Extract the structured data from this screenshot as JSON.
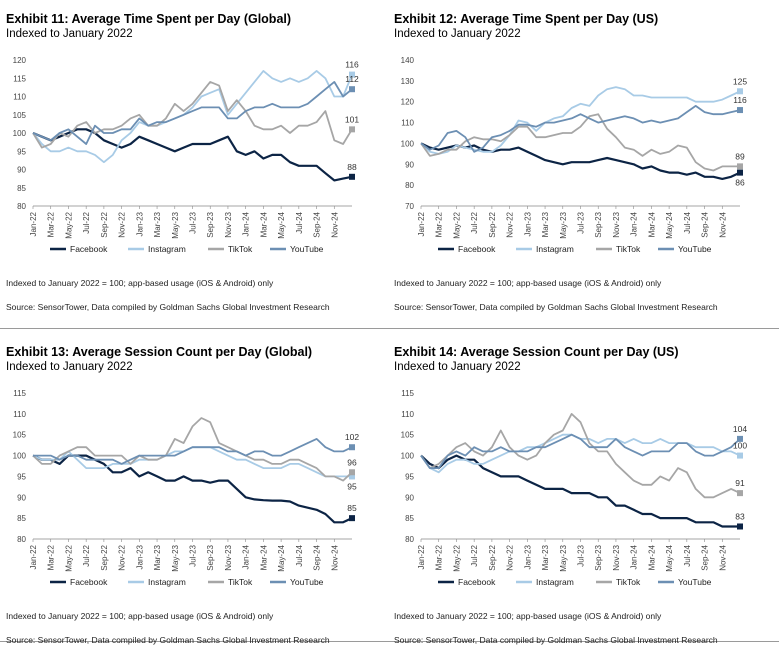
{
  "colors": {
    "facebook": "#0c2445",
    "instagram": "#a8cbe6",
    "tiktok": "#a6a6a6",
    "youtube": "#6c8fb3"
  },
  "chart_data": [
    {
      "type": "line",
      "title": "Exhibit 11: Average Time Spent per Day (Global)",
      "subtitle": "Indexed to January 2022",
      "note": "Indexed to January 2022 = 100; app-based usage (iOS & Android) only",
      "source": "Source: SensorTower, Data compiled by Goldman Sachs Global Investment Research",
      "ylim": [
        80,
        120
      ],
      "yticks": [
        80,
        85,
        90,
        95,
        100,
        105,
        110,
        115,
        120
      ],
      "xticks": [
        "Jan-22",
        "Mar-22",
        "May-22",
        "Jul-22",
        "Sep-22",
        "Nov-22",
        "Jan-23",
        "Mar-23",
        "May-23",
        "Jul-23",
        "Sep-23",
        "Nov-23",
        "Jan-24",
        "Mar-24",
        "May-24",
        "Jul-24",
        "Sep-24",
        "Nov-24"
      ],
      "legend": "bottom",
      "series": [
        {
          "name": "Facebook",
          "key": "facebook",
          "end_label": "88",
          "values": [
            100,
            99,
            98,
            99,
            100,
            101,
            101,
            100,
            98,
            97,
            96,
            97,
            99,
            98,
            97,
            96,
            95,
            96,
            97,
            97,
            97,
            98,
            99,
            95,
            94,
            95,
            93,
            94,
            94,
            92,
            91,
            91,
            91,
            89,
            87,
            87.5,
            88
          ]
        },
        {
          "name": "Instagram",
          "key": "instagram",
          "end_label": "116",
          "values": [
            100,
            97,
            95,
            95,
            96,
            95,
            95,
            94,
            92,
            94,
            98,
            100,
            103,
            102,
            102,
            103,
            104,
            105,
            107,
            110,
            111,
            112,
            105,
            108,
            111,
            114,
            117,
            115,
            114,
            115,
            114,
            115,
            117,
            115,
            110,
            110,
            116
          ]
        },
        {
          "name": "TikTok",
          "key": "tiktok",
          "end_label": "101",
          "values": [
            100,
            96,
            97,
            100,
            99,
            102,
            103,
            100,
            101,
            101,
            102,
            104,
            105,
            102,
            102,
            104,
            108,
            106,
            108,
            111,
            114,
            113,
            106,
            109,
            106,
            102,
            101,
            101,
            102,
            100,
            102,
            102,
            103,
            106,
            98,
            97,
            101
          ]
        },
        {
          "name": "YouTube",
          "key": "youtube",
          "end_label": "112",
          "values": [
            100,
            99,
            98,
            100,
            101,
            99,
            97,
            102,
            100,
            100,
            101,
            101,
            104,
            102,
            103,
            103,
            104,
            105,
            106,
            107,
            107,
            107,
            104,
            104,
            106,
            107,
            107,
            108,
            107,
            107,
            107,
            108,
            110,
            112,
            114,
            110,
            112
          ]
        }
      ]
    },
    {
      "type": "line",
      "title": "Exhibit 12: Average Time Spent per Day (US)",
      "subtitle": "Indexed to January 2022",
      "note": "Indexed to January 2022 = 100; app-based usage (iOS & Android) only",
      "source": "Source: SensorTower, Data compiled by Goldman Sachs Global Investment Research",
      "ylim": [
        70,
        140
      ],
      "yticks": [
        70,
        80,
        90,
        100,
        110,
        120,
        130,
        140
      ],
      "xticks": [
        "Jan-22",
        "Mar-22",
        "May-22",
        "Jul-22",
        "Sep-22",
        "Nov-22",
        "Jan-23",
        "Mar-23",
        "May-23",
        "Jul-23",
        "Sep-23",
        "Nov-23",
        "Jan-24",
        "Mar-24",
        "May-24",
        "Jul-24",
        "Sep-24",
        "Nov-24"
      ],
      "legend": "bottom",
      "series": [
        {
          "name": "Facebook",
          "key": "facebook",
          "end_label": "86",
          "values": [
            100,
            98,
            97,
            98,
            99,
            98,
            99,
            97,
            96,
            97,
            97,
            98,
            96,
            94,
            92,
            91,
            90,
            91,
            91,
            91,
            92,
            93,
            92,
            91,
            90,
            88,
            89,
            87,
            86,
            86,
            85,
            86,
            84,
            84,
            83,
            84,
            86
          ]
        },
        {
          "name": "Instagram",
          "key": "instagram",
          "end_label": "125",
          "values": [
            100,
            96,
            95,
            96,
            99,
            98,
            97,
            96,
            96,
            99,
            104,
            111,
            110,
            106,
            110,
            112,
            113,
            117,
            119,
            118,
            123,
            126,
            127,
            126,
            123,
            123,
            122,
            122,
            122,
            122,
            122,
            120,
            120,
            120,
            121,
            123,
            125
          ]
        },
        {
          "name": "TikTok",
          "key": "tiktok",
          "end_label": "89",
          "values": [
            100,
            94,
            95,
            97,
            97,
            101,
            103,
            102,
            102,
            101,
            104,
            108,
            108,
            103,
            103,
            104,
            105,
            105,
            108,
            113,
            114,
            107,
            103,
            98,
            97,
            94,
            97,
            95,
            96,
            99,
            98,
            91,
            88,
            87,
            89,
            89,
            89
          ]
        },
        {
          "name": "YouTube",
          "key": "youtube",
          "end_label": "116",
          "values": [
            100,
            97,
            99,
            105,
            106,
            103,
            96,
            98,
            103,
            104,
            106,
            109,
            109,
            108,
            110,
            110,
            111,
            112,
            114,
            112,
            110,
            111,
            112,
            113,
            112,
            110,
            111,
            110,
            111,
            112,
            115,
            118,
            115,
            114,
            114,
            115,
            116
          ]
        }
      ]
    },
    {
      "type": "line",
      "title": "Exhibit 13: Average Session Count per Day (Global)",
      "subtitle": "Indexed to January 2022",
      "note": "Indexed to January 2022 = 100; app-based usage (iOS & Android) only",
      "source": "Source: SensorTower, Data compiled by Goldman Sachs Global Investment Research",
      "ylim": [
        80,
        115
      ],
      "yticks": [
        80,
        85,
        90,
        95,
        100,
        105,
        110,
        115
      ],
      "xticks": [
        "Jan-22",
        "Mar-22",
        "May-22",
        "Jul-22",
        "Sep-22",
        "Nov-22",
        "Jan-23",
        "Mar-23",
        "May-23",
        "Jul-23",
        "Sep-23",
        "Nov-23",
        "Jan-24",
        "Mar-24",
        "May-24",
        "Jul-24",
        "Sep-24",
        "Nov-24"
      ],
      "legend": "bottom",
      "series": [
        {
          "name": "Facebook",
          "key": "facebook",
          "end_label": "85",
          "values": [
            100,
            99,
            99,
            98,
            100,
            100,
            100,
            99,
            98,
            96,
            96,
            97,
            95,
            96,
            95,
            94,
            94,
            95,
            94,
            94,
            93.5,
            94,
            94,
            92,
            90,
            89.5,
            89.3,
            89.2,
            89.2,
            89,
            88,
            87.5,
            87,
            86,
            84,
            84,
            85
          ]
        },
        {
          "name": "Instagram",
          "key": "instagram",
          "end_label": "95",
          "values": [
            100,
            99,
            99,
            99,
            101,
            99,
            97,
            97,
            97,
            98,
            98,
            98,
            99,
            99,
            99,
            100,
            101,
            101,
            102,
            102,
            102,
            101,
            100,
            99,
            99,
            98,
            97,
            97,
            97,
            98,
            98,
            97,
            96,
            95,
            95,
            95,
            95
          ]
        },
        {
          "name": "TikTok",
          "key": "tiktok",
          "end_label": "96",
          "values": [
            100,
            98,
            98,
            100,
            101,
            102,
            102,
            100,
            100,
            100,
            100,
            98,
            100,
            99,
            99,
            100,
            104,
            103,
            107,
            109,
            108,
            103,
            102,
            101,
            100,
            99,
            99,
            98,
            98,
            99,
            99,
            98,
            97,
            95,
            95,
            94,
            96
          ]
        },
        {
          "name": "YouTube",
          "key": "youtube",
          "end_label": "102",
          "values": [
            100,
            100,
            100,
            99,
            100,
            100,
            99,
            99,
            99,
            99,
            98,
            99,
            100,
            100,
            100,
            100,
            100,
            101,
            102,
            102,
            102,
            102,
            101,
            101,
            100,
            101,
            101,
            100,
            100,
            101,
            102,
            103,
            104,
            102,
            101,
            101,
            102
          ]
        }
      ]
    },
    {
      "type": "line",
      "title": "Exhibit 14: Average Session Count per Day (US)",
      "subtitle": "Indexed to January 2022",
      "note": "Indexed to January 2022 = 100; app-based usage (iOS & Android) only",
      "source": "Source: SensorTower, Data compiled by Goldman Sachs Global Investment Research",
      "ylim": [
        80,
        115
      ],
      "yticks": [
        80,
        85,
        90,
        95,
        100,
        105,
        110,
        115
      ],
      "xticks": [
        "Jan-22",
        "Mar-22",
        "May-22",
        "Jul-22",
        "Sep-22",
        "Nov-22",
        "Jan-23",
        "Mar-23",
        "May-23",
        "Jul-23",
        "Sep-23",
        "Nov-23",
        "Jan-24",
        "Mar-24",
        "May-24",
        "Jul-24",
        "Sep-24",
        "Nov-24"
      ],
      "legend": "bottom",
      "series": [
        {
          "name": "Facebook",
          "key": "facebook",
          "end_label": "83",
          "values": [
            100,
            98,
            97,
            99,
            100,
            99,
            99,
            97,
            96,
            95,
            95,
            95,
            94,
            93,
            92,
            92,
            92,
            91,
            91,
            91,
            90,
            90,
            88,
            88,
            87,
            86,
            86,
            85,
            85,
            85,
            85,
            84,
            84,
            84,
            83,
            83,
            83
          ]
        },
        {
          "name": "Instagram",
          "key": "instagram",
          "end_label": "100",
          "values": [
            100,
            97,
            96,
            98,
            99,
            99,
            98,
            98,
            99,
            100,
            101,
            101,
            102,
            102,
            103,
            104,
            105,
            105,
            104,
            104,
            103,
            104,
            104,
            103,
            104,
            103,
            103,
            104,
            103,
            103,
            103,
            102,
            102,
            102,
            101,
            101,
            100
          ]
        },
        {
          "name": "TikTok",
          "key": "tiktok",
          "end_label": "91",
          "values": [
            100,
            97,
            98,
            100,
            102,
            103,
            101,
            100,
            102,
            106,
            102,
            100,
            99,
            100,
            103,
            105,
            106,
            110,
            108,
            103,
            101,
            101,
            98,
            96,
            94,
            93,
            93,
            95,
            94,
            97,
            96,
            92,
            90,
            90,
            91,
            92,
            91
          ]
        },
        {
          "name": "YouTube",
          "key": "youtube",
          "end_label": "104",
          "values": [
            100,
            97,
            97,
            100,
            101,
            100,
            102,
            101,
            101,
            102,
            101,
            101,
            101,
            102,
            102,
            103,
            104,
            105,
            104,
            102,
            102,
            102,
            104,
            102,
            101,
            100,
            101,
            101,
            101,
            103,
            103,
            101,
            100,
            100,
            101,
            102,
            104
          ]
        }
      ]
    }
  ]
}
